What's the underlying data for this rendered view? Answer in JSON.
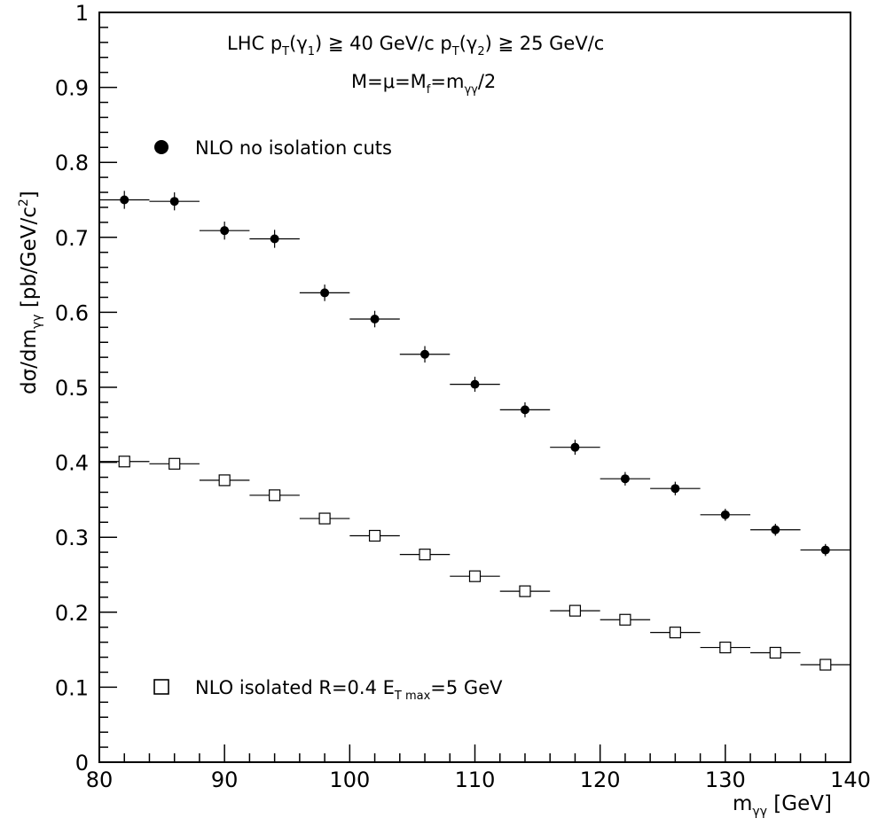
{
  "chart_data": {
    "type": "scatter",
    "title": "",
    "annotations": {
      "line1": "LHC p_T(γ_1) ≧ 40 GeV/c p_T(γ_2) ≧ 25 GeV/c",
      "line2": "M=μ=M_f=m_γγ/2"
    },
    "xlabel": "m_γγ [GeV]",
    "ylabel": "dσ/dm_γγ [pb/GeV/c²]",
    "xlim": [
      80,
      140
    ],
    "ylim": [
      0,
      1
    ],
    "x_ticks": [
      80,
      90,
      100,
      110,
      120,
      130,
      140
    ],
    "y_ticks": [
      0,
      0.1,
      0.2,
      0.3,
      0.4,
      0.5,
      0.6,
      0.7,
      0.8,
      0.9,
      1
    ],
    "x_tick_labels": [
      "80",
      "90",
      "100",
      "110",
      "120",
      "130",
      "140"
    ],
    "y_tick_labels": [
      "0",
      "0.1",
      "0.2",
      "0.3",
      "0.4",
      "0.5",
      "0.6",
      "0.7",
      "0.8",
      "0.9",
      "1"
    ],
    "bin_half_width": 2,
    "series": [
      {
        "name": "NLO no isolation cuts",
        "marker": "filled-circle",
        "color": "#000000",
        "x": [
          82,
          86,
          90,
          94,
          98,
          102,
          106,
          110,
          114,
          118,
          122,
          126,
          130,
          134,
          138
        ],
        "y": [
          0.75,
          0.748,
          0.709,
          0.698,
          0.626,
          0.591,
          0.544,
          0.504,
          0.47,
          0.42,
          0.378,
          0.365,
          0.33,
          0.31,
          0.283
        ],
        "yerr": [
          0.012,
          0.012,
          0.012,
          0.012,
          0.011,
          0.011,
          0.011,
          0.01,
          0.01,
          0.01,
          0.009,
          0.009,
          0.008,
          0.008,
          0.008
        ]
      },
      {
        "name": "NLO isolated R=0.4 E_T max=5 GeV",
        "marker": "open-square",
        "color": "#000000",
        "x": [
          82,
          86,
          90,
          94,
          98,
          102,
          106,
          110,
          114,
          118,
          122,
          126,
          130,
          134,
          138
        ],
        "y": [
          0.401,
          0.398,
          0.376,
          0.356,
          0.325,
          0.302,
          0.277,
          0.248,
          0.228,
          0.202,
          0.19,
          0.173,
          0.153,
          0.146,
          0.13
        ],
        "yerr": [
          0,
          0,
          0,
          0,
          0,
          0,
          0,
          0,
          0,
          0,
          0,
          0,
          0,
          0,
          0
        ]
      }
    ]
  }
}
